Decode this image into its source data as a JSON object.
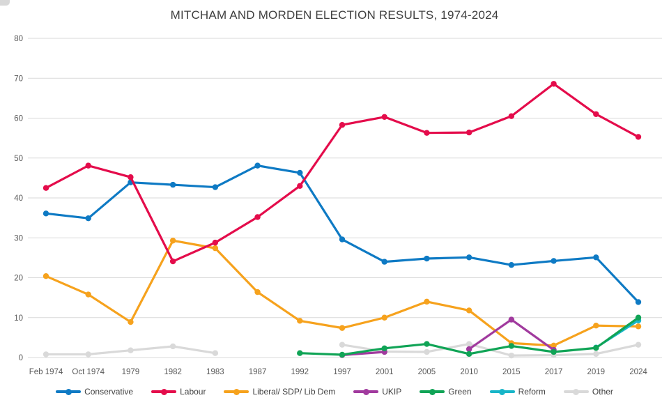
{
  "title": "MITCHAM AND MORDEN ELECTION RESULTS, 1974-2024",
  "chart_data": {
    "type": "line",
    "title": "MITCHAM AND MORDEN ELECTION RESULTS, 1974-2024",
    "xlabel": "",
    "ylabel": "",
    "ylim": [
      0,
      80
    ],
    "yticks": [
      0,
      10,
      20,
      30,
      40,
      50,
      60,
      70,
      80
    ],
    "grid": true,
    "legend_position": "bottom",
    "categories": [
      "Feb 1974",
      "Oct 1974",
      "1979",
      "1982",
      "1983",
      "1987",
      "1992",
      "1997",
      "2001",
      "2005",
      "2010",
      "2015",
      "2017",
      "2019",
      "2024"
    ],
    "series": [
      {
        "name": "Conservative",
        "color": "#0e7ac4",
        "values": [
          36.1,
          34.9,
          43.9,
          43.3,
          42.7,
          48.1,
          46.3,
          29.6,
          24.0,
          24.8,
          25.1,
          23.2,
          24.2,
          25.1,
          13.9
        ]
      },
      {
        "name": "Labour",
        "color": "#e40c4b",
        "values": [
          42.5,
          48.1,
          45.2,
          24.1,
          28.8,
          35.2,
          43.0,
          58.3,
          60.3,
          56.3,
          56.4,
          60.5,
          68.6,
          61.0,
          55.3
        ]
      },
      {
        "name": "Liberal/ SDP/ Lib Dem",
        "color": "#f6a21d",
        "values": [
          20.4,
          15.8,
          8.9,
          29.3,
          27.4,
          16.4,
          9.2,
          7.4,
          10.0,
          14.0,
          11.8,
          3.6,
          3.0,
          8.0,
          7.8
        ]
      },
      {
        "name": "UKIP",
        "color": "#a13a9e",
        "values": [
          null,
          null,
          null,
          null,
          null,
          null,
          null,
          0.6,
          1.4,
          null,
          2.1,
          9.5,
          1.9,
          null,
          null
        ]
      },
      {
        "name": "Green",
        "color": "#10a456",
        "values": [
          null,
          null,
          null,
          null,
          null,
          null,
          1.1,
          0.7,
          2.3,
          3.4,
          0.9,
          2.9,
          1.4,
          2.4,
          10.0
        ]
      },
      {
        "name": "Reform",
        "color": "#17b5c8",
        "values": [
          null,
          null,
          null,
          null,
          null,
          null,
          null,
          null,
          null,
          null,
          null,
          null,
          null,
          2.5,
          9.3
        ]
      },
      {
        "name": "Other",
        "color": "#d9d9d9",
        "values": [
          0.8,
          0.8,
          1.8,
          2.8,
          1.1,
          null,
          null,
          3.2,
          1.5,
          1.4,
          3.4,
          0.5,
          0.6,
          0.9,
          3.2
        ]
      }
    ]
  }
}
